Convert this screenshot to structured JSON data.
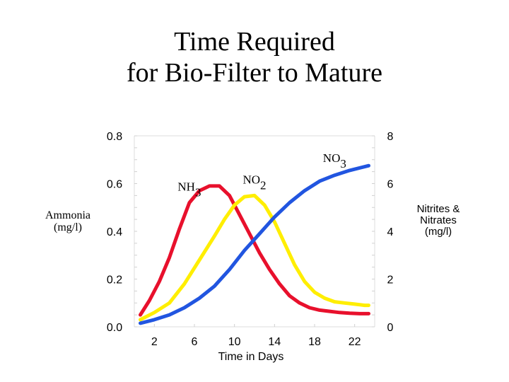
{
  "title_lines": [
    "Time Required",
    "for Bio-Filter to Mature"
  ],
  "chart_data": {
    "type": "line",
    "title": "Time Required for Bio-Filter to Mature",
    "xlabel": "Time in Days",
    "ylabel_left": [
      "Ammonia",
      "(mg/l)"
    ],
    "ylabel_right": [
      "Nitrites &",
      "Nitrates",
      "(mg/l)"
    ],
    "xlim": [
      0,
      24
    ],
    "x_ticks": [
      2,
      6,
      10,
      14,
      18,
      22
    ],
    "ylim_left": [
      0,
      0.8
    ],
    "y_ticks_left": [
      "0.0",
      "0.2",
      "0.4",
      "0.6",
      "0.8"
    ],
    "ylim_right": [
      0,
      8
    ],
    "y_ticks_right": [
      "0",
      "2",
      "4",
      "6",
      "8"
    ],
    "grid": false,
    "series": [
      {
        "name": "NH3",
        "axis": "left",
        "color": "#e8102c",
        "x": [
          0.6,
          1.5,
          2.5,
          3.5,
          4.5,
          5.5,
          6.5,
          7.5,
          8.5,
          9.5,
          10.5,
          11.5,
          12.5,
          13.5,
          14.5,
          15.5,
          16.5,
          17.5,
          18.5,
          19.5,
          20.5,
          21.5,
          22.5,
          23.4
        ],
        "y": [
          0.05,
          0.11,
          0.19,
          0.29,
          0.41,
          0.52,
          0.57,
          0.59,
          0.59,
          0.55,
          0.47,
          0.39,
          0.31,
          0.24,
          0.18,
          0.13,
          0.1,
          0.08,
          0.07,
          0.065,
          0.06,
          0.057,
          0.055,
          0.055
        ]
      },
      {
        "name": "NO2",
        "axis": "right",
        "color": "#ffee00",
        "x": [
          0.6,
          2,
          3.5,
          5,
          6.5,
          8,
          9,
          10,
          11,
          12,
          13,
          14,
          15,
          16,
          17,
          18,
          19,
          20,
          21,
          22,
          23,
          23.4
        ],
        "y": [
          0.3,
          0.6,
          1.0,
          1.8,
          2.8,
          3.8,
          4.5,
          5.1,
          5.45,
          5.5,
          5.1,
          4.4,
          3.5,
          2.6,
          1.9,
          1.45,
          1.2,
          1.05,
          1.0,
          0.95,
          0.9,
          0.9
        ]
      },
      {
        "name": "NO3",
        "axis": "right",
        "color": "#2155e0",
        "x": [
          0.6,
          2,
          3.5,
          5,
          6.5,
          8,
          9.5,
          11,
          12.5,
          14,
          15.5,
          17,
          18.5,
          20,
          21.5,
          23.4
        ],
        "y": [
          0.15,
          0.3,
          0.5,
          0.8,
          1.2,
          1.7,
          2.4,
          3.2,
          3.9,
          4.6,
          5.2,
          5.7,
          6.1,
          6.35,
          6.55,
          6.75
        ]
      }
    ],
    "annotations": [
      {
        "base": "NH",
        "sub": "3",
        "x": 5.5,
        "y_left": 0.57
      },
      {
        "base": "NO",
        "sub": "2",
        "x": 12.0,
        "y_left": 0.6
      },
      {
        "base": "NO",
        "sub": "3",
        "x": 20.0,
        "y_left": 0.69
      }
    ]
  }
}
